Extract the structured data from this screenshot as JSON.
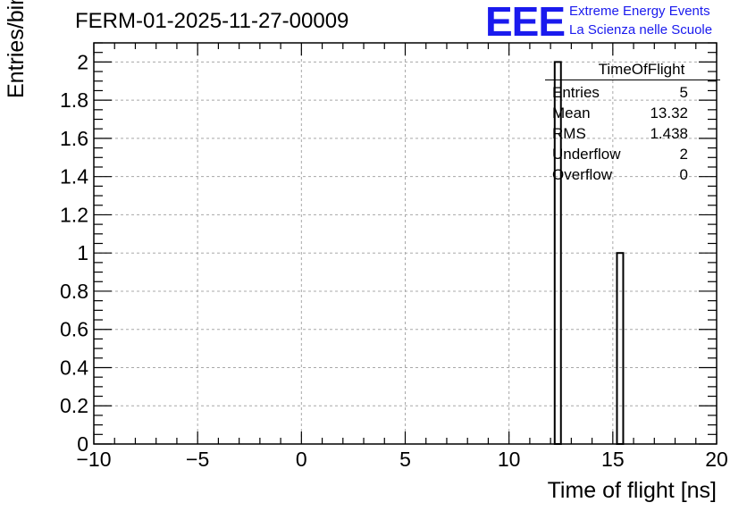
{
  "header": {
    "run_title": "FERM-01-2025-11-27-00009",
    "logo_text": "EEE",
    "logo_line1": "Extreme Energy Events",
    "logo_line2": "La Scienza nelle Scuole"
  },
  "colors": {
    "logo": "#1a1aee",
    "grid": "#a8a8a8",
    "axis": "#000000"
  },
  "stats_box": {
    "title": "TimeOfFlight",
    "rows": [
      {
        "label": "Entries",
        "value": "5"
      },
      {
        "label": "Mean",
        "value": "13.32"
      },
      {
        "label": "RMS",
        "value": "1.438"
      },
      {
        "label": "Underflow",
        "value": "2"
      },
      {
        "label": "Overflow",
        "value": "0"
      }
    ]
  },
  "chart_data": {
    "type": "bar",
    "xlabel": "Time of flight [ns]",
    "ylabel": "Entries/bin",
    "xlim": [
      -10,
      20
    ],
    "ylim": [
      0,
      2.1
    ],
    "grid": true,
    "legend": "top-right",
    "x_ticks": [
      -10,
      -5,
      0,
      5,
      10,
      15,
      20
    ],
    "x_tick_labels": [
      "−10",
      "−5",
      "0",
      "5",
      "10",
      "15",
      "20"
    ],
    "y_ticks": [
      0,
      0.2,
      0.4,
      0.6,
      0.8,
      1,
      1.2,
      1.4,
      1.6,
      1.8,
      2
    ],
    "y_tick_labels": [
      "0",
      "0.2",
      "0.4",
      "0.6",
      "0.8",
      "1",
      "1.2",
      "1.4",
      "1.6",
      "1.8",
      "2"
    ],
    "bins": [
      {
        "x_low": 12.2,
        "x_high": 12.5,
        "value": 2
      },
      {
        "x_low": 15.2,
        "x_high": 15.5,
        "value": 1
      }
    ]
  }
}
